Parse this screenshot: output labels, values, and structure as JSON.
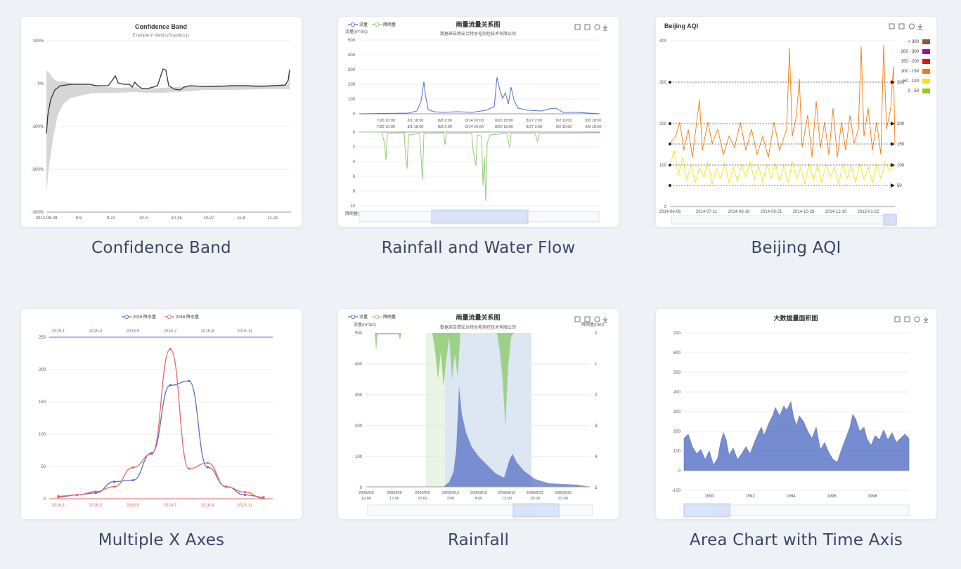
{
  "gallery": [
    {
      "caption": "Confidence Band",
      "chart_data": {
        "type": "area",
        "title": "Confidence Band",
        "subtitle": "Example in MetricsGraphics.js",
        "yticks": [
          "100%",
          "0%",
          "-100%",
          "-200%",
          "-300%"
        ],
        "xticks": [
          "2012-08-28",
          "9-9",
          "9-21",
          "10-3",
          "10-15",
          "10-27",
          "11-8",
          "11-21"
        ]
      }
    },
    {
      "caption": "Rainfall and Water Flow",
      "chart_data": {
        "type": "line",
        "title": "雨量流量关系图",
        "subtitle": "数据来自西安兰特水电测控技术有限公司",
        "legend": [
          "流量",
          "降雨量"
        ],
        "ylabel_top": "流量(m^3/s)",
        "ylabel_bottom": "降雨量(mm)",
        "yticks_top": [
          "500",
          "400",
          "300",
          "200",
          "100",
          "0"
        ],
        "yticks_bottom": [
          "0",
          "2",
          "4",
          "6",
          "8",
          "10"
        ],
        "xticks_row1": [
          "7/26 10:00",
          "8/1 18:00",
          "8/8 2:00",
          "8/14 10:00",
          "8/20 18:00",
          "8/27 2:00",
          "9/2 10:00",
          "9/8 18:00"
        ],
        "xticks_row2": [
          "7/26 10:00",
          "8/1 18:00",
          "8/8 2:00",
          "8/14 10:00",
          "8/20 18:00",
          "8/27 2:00",
          "9/2 10:00",
          "9/8 18:00"
        ]
      }
    },
    {
      "caption": "Beijing AQI",
      "chart_data": {
        "type": "line",
        "title": "Beijing AQI",
        "yticks": [
          "400",
          "300",
          "200",
          "100",
          "0"
        ],
        "xticks": [
          "2014-06-06",
          "2014-07-11",
          "2014-08-16",
          "2014-09-21",
          "2014-10-28",
          "2014-12-10",
          "2015-01-22"
        ],
        "markline_labels": [
          "300",
          "200",
          "150",
          "100",
          "50"
        ],
        "legend": [
          "> 300",
          "200 - 300",
          "150 - 200",
          "100 - 150",
          "50 - 100",
          "0 - 50"
        ],
        "legend_colors": [
          "#a0522d",
          "#9b0fab",
          "#e8101b",
          "#f17b0b",
          "#f5e60c",
          "#8fcf1a"
        ]
      }
    },
    {
      "caption": "Multiple X Axes",
      "chart_data": {
        "type": "line",
        "legend": [
          "2015 降水量",
          "2016 降水量"
        ],
        "x_top": [
          "2015-1",
          "2015-3",
          "2015-5",
          "2015-7",
          "2015-9",
          "2015-11"
        ],
        "x_bottom": [
          "2016-1",
          "2016-3",
          "2016-5",
          "2016-7",
          "2016-9",
          "2016-11"
        ],
        "yticks": [
          "250",
          "200",
          "150",
          "100",
          "50",
          "0"
        ],
        "ylim": [
          0,
          250
        ],
        "series": [
          {
            "name": "2015 降水量",
            "values": [
              2.6,
              5.9,
              9.0,
              26.4,
              28.7,
              70.7,
              175.6,
              182.2,
              48.7,
              18.8,
              6.0,
              2.3
            ]
          },
          {
            "name": "2016 降水量",
            "values": [
              3.9,
              5.9,
              11.1,
              18.7,
              48.3,
              69.2,
              231.6,
              46.6,
              55.4,
              18.4,
              10.3,
              0.7
            ]
          }
        ]
      }
    },
    {
      "caption": "Rainfall",
      "chart_data": {
        "type": "area",
        "title": "雨量流量关系图",
        "subtitle": "数据来自西安兰特水电测控技术有限公司",
        "legend": [
          "流量",
          "降雨量"
        ],
        "ylabel_left": "流量(m^3/s)",
        "ylabel_right": "降雨量(mm)",
        "yticks_left": [
          "500",
          "400",
          "300",
          "200",
          "100",
          "0"
        ],
        "yticks_right": [
          "0",
          "1",
          "2",
          "3",
          "4",
          "5"
        ],
        "xticks_top": [
          "2009/9/3",
          "2009/9/6",
          "2009/9/9",
          "2009/9/13",
          "2009/9/16",
          "2009/9/19",
          "2009/9/22",
          "2009/9/25"
        ],
        "xticks_bottom": [
          "12:00",
          "17:00",
          "22:00",
          "3:00",
          "8:00",
          "13:00",
          "18:00",
          "23:00"
        ]
      }
    },
    {
      "caption": "Area Chart with Time Axis",
      "chart_data": {
        "type": "area",
        "title": "大数据量面积图",
        "yticks": [
          "700",
          "600",
          "500",
          "400",
          "300",
          "200",
          "100",
          "0",
          "-100"
        ],
        "xticks": [
          "1990",
          "1992",
          "1994",
          "1996",
          "1998"
        ]
      }
    }
  ]
}
